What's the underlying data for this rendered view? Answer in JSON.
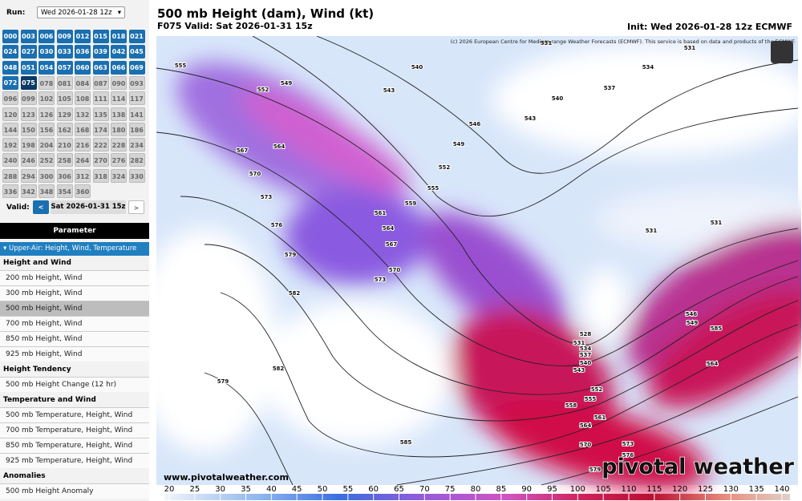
{
  "sidebar": {
    "run_label": "Run:",
    "run_value": "Wed 2026-01-28 12z",
    "hours": [
      "000",
      "003",
      "006",
      "009",
      "012",
      "015",
      "018",
      "021",
      "024",
      "027",
      "030",
      "033",
      "036",
      "039",
      "042",
      "045",
      "048",
      "051",
      "054",
      "057",
      "060",
      "063",
      "066",
      "069",
      "072",
      "075",
      "078",
      "081",
      "084",
      "087",
      "090",
      "093",
      "096",
      "099",
      "102",
      "105",
      "108",
      "111",
      "114",
      "117",
      "120",
      "123",
      "126",
      "129",
      "132",
      "135",
      "138",
      "141",
      "144",
      "150",
      "156",
      "162",
      "168",
      "174",
      "180",
      "186",
      "192",
      "198",
      "204",
      "210",
      "216",
      "222",
      "228",
      "234",
      "240",
      "246",
      "252",
      "258",
      "264",
      "270",
      "276",
      "282",
      "288",
      "294",
      "300",
      "306",
      "312",
      "318",
      "324",
      "330",
      "336",
      "342",
      "348",
      "354",
      "360"
    ],
    "valid_label": "Valid:",
    "valid_prev": "<",
    "valid_value": "Sat 2026-01-31 15z",
    "valid_next": ">",
    "parameter_header": "Parameter",
    "category": "Upper-Air: Height, Wind, Temperature",
    "groups": [
      {
        "title": "Height and Wind",
        "items": [
          "200 mb Height, Wind",
          "300 mb Height, Wind",
          "500 mb Height, Wind",
          "700 mb Height, Wind",
          "850 mb Height, Wind",
          "925 mb Height, Wind"
        ]
      },
      {
        "title": "Height Tendency",
        "items": [
          "500 mb Height Change (12 hr)"
        ]
      },
      {
        "title": "Temperature and Wind",
        "items": [
          "500 mb Temperature, Height, Wind",
          "700 mb Temperature, Height, Wind",
          "850 mb Temperature, Height, Wind",
          "925 mb Temperature, Height, Wind"
        ]
      },
      {
        "title": "Anomalies",
        "items": [
          "500 mb Height Anomaly"
        ]
      }
    ]
  },
  "header": {
    "title": "500 mb Height (dam), Wind (kt)",
    "valid": "F075 Valid: Sat 2026-01-31 15z",
    "init": "Init: Wed 2026-01-28 12z ECMWF",
    "credit": "(c) 2026 European Centre for Medium-range Weather Forecasts (ECMWF). This service is based on data and products of the ECMWF."
  },
  "map": {
    "contour_labels": [
      "531",
      "540",
      "543",
      "549",
      "552",
      "555",
      "564",
      "567",
      "570",
      "573",
      "576",
      "579",
      "582",
      "582",
      "579",
      "561",
      "564",
      "567",
      "570",
      "573",
      "552",
      "555",
      "559",
      "531",
      "528",
      "531",
      "534",
      "537",
      "540",
      "543",
      "552",
      "555",
      "558",
      "561",
      "564",
      "570",
      "573",
      "576",
      "579",
      "585",
      "585",
      "546",
      "549",
      "564",
      "531",
      "534",
      "537",
      "540",
      "543",
      "546",
      "549",
      "531"
    ]
  },
  "footer": {
    "url": "www.pivotalweather.com",
    "brand": "pivotal weather"
  },
  "colorbar": {
    "ticks": [
      20,
      25,
      30,
      35,
      40,
      45,
      50,
      55,
      60,
      65,
      70,
      75,
      80,
      85,
      90,
      95,
      100,
      105,
      110,
      115,
      120,
      125,
      130,
      135,
      140
    ]
  }
}
